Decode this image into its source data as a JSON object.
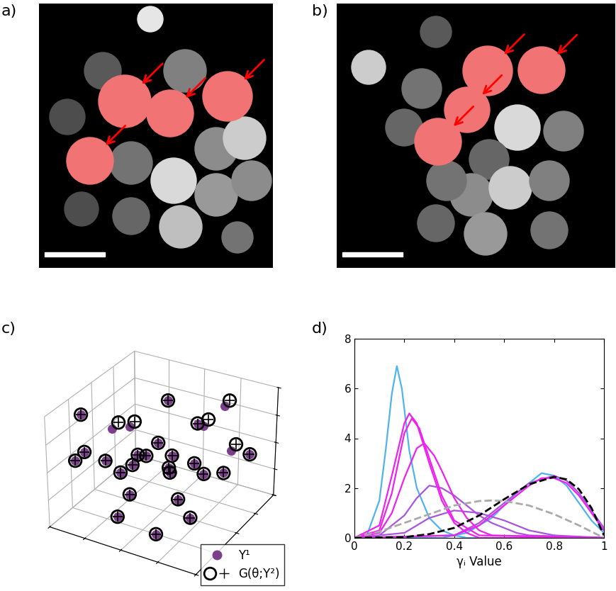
{
  "chart_data": [
    {
      "type": "image",
      "title": "a)"
    },
    {
      "type": "image",
      "title": "b)"
    },
    {
      "type": "scatter3d",
      "title": "c)",
      "legend": "lower right",
      "grid": true,
      "tick_labels": false,
      "xlim": [
        0,
        1
      ],
      "ylim": [
        0,
        1
      ],
      "zlim": [
        0,
        1
      ],
      "xticks": [
        0,
        0.25,
        0.5,
        0.75,
        1
      ],
      "yticks": [
        0,
        0.25,
        0.5,
        0.75,
        1
      ],
      "zticks": [
        0,
        0.25,
        0.5,
        0.75,
        1
      ],
      "series": [
        {
          "name": "Y¹",
          "color": "#7b3f8c",
          "marker": "filled_circle",
          "x": [
            0.1,
            0.2,
            0.3,
            0.45,
            0.55,
            0.65,
            0.8,
            0.9,
            0.15,
            0.25,
            0.35,
            0.5,
            0.6,
            0.75,
            0.85,
            0.4,
            0.2,
            0.1,
            0.55,
            0.7,
            0.3,
            0.9,
            0.45,
            0.65,
            0.05,
            0.8,
            0.35,
            0.6
          ],
          "y": [
            0.15,
            0.1,
            0.25,
            0.2,
            0.35,
            0.3,
            0.45,
            0.6,
            0.4,
            0.55,
            0.45,
            0.6,
            0.7,
            0.8,
            0.2,
            0.75,
            0.8,
            0.65,
            0.9,
            0.55,
            0.9,
            0.85,
            0.05,
            0.15,
            0.3,
            0.7,
            0.35,
            0.5
          ],
          "z": [
            0.55,
            0.7,
            0.85,
            0.95,
            0.75,
            0.6,
            0.5,
            0.65,
            0.4,
            0.3,
            0.5,
            0.45,
            0.35,
            0.25,
            0.3,
            0.15,
            0.2,
            0.1,
            0.55,
            0.85,
            0.7,
            0.45,
            0.25,
            0.1,
            0.85,
            0.95,
            0.2,
            0.15
          ]
        },
        {
          "name": "G(θ;Y²)",
          "color": "#000000",
          "marker": "circled_plus",
          "x": [
            0.1,
            0.2,
            0.33,
            0.47,
            0.55,
            0.65,
            0.8,
            0.92,
            0.15,
            0.25,
            0.35,
            0.5,
            0.6,
            0.75,
            0.85,
            0.4,
            0.2,
            0.1,
            0.57,
            0.7,
            0.3,
            0.9,
            0.45,
            0.65,
            0.05,
            0.82,
            0.35,
            0.6
          ],
          "y": [
            0.15,
            0.1,
            0.27,
            0.22,
            0.35,
            0.3,
            0.45,
            0.62,
            0.4,
            0.55,
            0.45,
            0.6,
            0.7,
            0.8,
            0.2,
            0.75,
            0.8,
            0.65,
            0.93,
            0.55,
            0.9,
            0.85,
            0.05,
            0.15,
            0.3,
            0.72,
            0.35,
            0.5
          ],
          "z": [
            0.55,
            0.7,
            0.9,
            0.99,
            0.75,
            0.6,
            0.5,
            0.7,
            0.4,
            0.3,
            0.5,
            0.45,
            0.35,
            0.25,
            0.3,
            0.15,
            0.2,
            0.1,
            0.6,
            0.85,
            0.7,
            0.45,
            0.25,
            0.1,
            0.85,
            0.99,
            0.2,
            0.15
          ]
        }
      ]
    },
    {
      "type": "line",
      "title": "d)",
      "x_label": "γᵢ Value",
      "xlim": [
        0,
        1
      ],
      "ylim": [
        0,
        8
      ],
      "xticks": [
        0,
        0.2,
        0.4,
        0.6,
        0.8,
        1
      ],
      "yticks": [
        0,
        2,
        4,
        6,
        8
      ],
      "series": [
        {
          "color": "#4fb3f0",
          "line_style": "solid",
          "x": [
            0,
            0.05,
            0.1,
            0.125,
            0.15,
            0.17,
            0.19,
            0.22,
            0.25,
            0.3,
            0.35,
            0.4,
            0.45,
            1.0
          ],
          "values": [
            0,
            0.1,
            1.5,
            3.5,
            5.8,
            6.9,
            6.0,
            3.5,
            2.0,
            0.8,
            0.3,
            0.1,
            0,
            0
          ]
        },
        {
          "color": "#4fb3f0",
          "line_style": "solid",
          "x": [
            0,
            0.35,
            0.45,
            0.55,
            0.65,
            0.75,
            0.8,
            0.85,
            0.9,
            0.95,
            1.0
          ],
          "values": [
            0,
            0,
            0.2,
            0.8,
            1.8,
            2.6,
            2.5,
            2.1,
            1.4,
            0.7,
            0.2
          ]
        },
        {
          "color": "#a855e0",
          "line_style": "solid",
          "x": [
            0,
            0.1,
            0.2,
            0.25,
            0.3,
            0.35,
            0.4,
            0.45,
            0.5,
            0.55,
            0.6,
            0.65,
            0.7,
            1.0
          ],
          "values": [
            0,
            0.1,
            0.9,
            1.6,
            2.1,
            2.0,
            1.7,
            1.3,
            0.9,
            0.6,
            0.4,
            0.2,
            0.1,
            0
          ]
        },
        {
          "color": "#a855e0",
          "line_style": "solid",
          "x": [
            0,
            0.2,
            0.3,
            0.4,
            0.5,
            0.6,
            0.7,
            0.8,
            1.0
          ],
          "values": [
            0,
            0.2,
            0.8,
            1.1,
            1.0,
            0.7,
            0.3,
            0.1,
            0
          ]
        },
        {
          "color": "#a855e0",
          "line_style": "solid",
          "x": [
            0,
            0.4,
            0.5,
            0.6,
            0.7,
            0.8,
            0.85,
            0.9,
            0.95,
            1.0
          ],
          "values": [
            0,
            0.1,
            0.6,
            1.4,
            2.2,
            2.5,
            2.3,
            1.8,
            1.1,
            0.4
          ]
        },
        {
          "color": "#ee22ee",
          "line_style": "solid",
          "x": [
            0,
            0.1,
            0.15,
            0.2,
            0.22,
            0.25,
            0.3,
            0.35,
            0.4,
            0.45,
            0.5,
            1.0
          ],
          "values": [
            0,
            0.5,
            2.5,
            4.6,
            5.0,
            4.6,
            3.0,
            1.5,
            0.6,
            0.2,
            0,
            0
          ]
        },
        {
          "color": "#ee22ee",
          "line_style": "solid",
          "x": [
            0,
            0.1,
            0.15,
            0.2,
            0.25,
            0.28,
            0.32,
            0.35,
            0.4,
            0.45,
            0.5,
            0.55,
            1.0
          ],
          "values": [
            0,
            0.2,
            1.0,
            2.4,
            3.6,
            3.8,
            3.3,
            2.7,
            1.6,
            0.8,
            0.3,
            0.1,
            0
          ]
        },
        {
          "color": "#ee22ee",
          "line_style": "solid",
          "x": [
            0,
            0.1,
            0.15,
            0.2,
            0.23,
            0.26,
            0.3,
            0.35,
            0.4,
            0.5,
            1.0
          ],
          "values": [
            0,
            0.3,
            1.8,
            4.2,
            4.8,
            4.4,
            3.2,
            1.7,
            0.7,
            0.1,
            0
          ]
        },
        {
          "color": "#ee22ee",
          "line_style": "solid",
          "x": [
            0,
            0.4,
            0.5,
            0.6,
            0.7,
            0.75,
            0.8,
            0.85,
            0.9,
            0.95,
            1.0
          ],
          "values": [
            0,
            0.1,
            0.5,
            1.3,
            2.1,
            2.4,
            2.4,
            2.2,
            1.7,
            1.0,
            0.3
          ]
        },
        {
          "color": "#aaaaaa",
          "line_style": "dashed",
          "x": [
            0,
            0.1,
            0.2,
            0.3,
            0.4,
            0.5,
            0.55,
            0.6,
            0.7,
            0.8,
            0.9,
            1.0
          ],
          "values": [
            0,
            0.25,
            0.6,
            0.95,
            1.3,
            1.48,
            1.5,
            1.48,
            1.3,
            0.95,
            0.5,
            0
          ]
        },
        {
          "color": "#000000",
          "line_style": "dashed",
          "x": [
            0,
            0.2,
            0.3,
            0.4,
            0.5,
            0.6,
            0.7,
            0.8,
            0.85,
            0.9,
            0.95,
            1.0
          ],
          "values": [
            0,
            0.03,
            0.15,
            0.4,
            0.9,
            1.55,
            2.15,
            2.45,
            2.35,
            1.95,
            1.2,
            0.1
          ]
        }
      ]
    }
  ]
}
